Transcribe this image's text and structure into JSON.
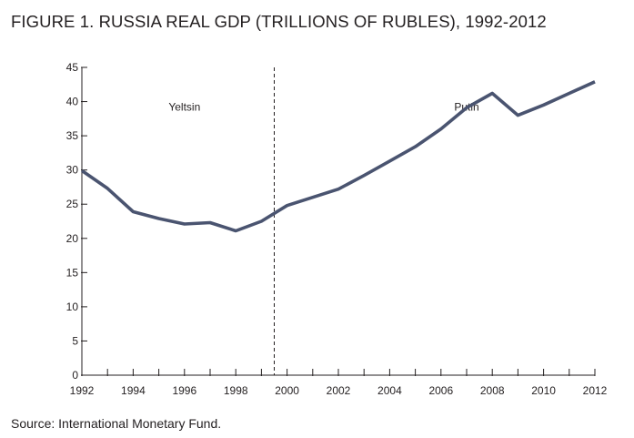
{
  "figure": {
    "title": "FIGURE 1. RUSSIA REAL GDP (TRILLIONS OF RUBLES), 1992-2012",
    "source": "Source: International Monetary Fund."
  },
  "chart_data": {
    "type": "line",
    "title": "FIGURE 1. RUSSIA REAL GDP (TRILLIONS OF RUBLES), 1992-2012",
    "xlabel": "",
    "ylabel": "",
    "x": [
      1992,
      1993,
      1994,
      1995,
      1996,
      1997,
      1998,
      1999,
      2000,
      2001,
      2002,
      2003,
      2004,
      2005,
      2006,
      2007,
      2008,
      2009,
      2010,
      2011,
      2012
    ],
    "series": [
      {
        "values": [
          29.9,
          27.3,
          23.9,
          22.9,
          22.1,
          22.3,
          21.1,
          22.5,
          24.8,
          26.0,
          27.2,
          29.2,
          31.3,
          33.4,
          36.0,
          39.1,
          41.2,
          38.0,
          39.5,
          41.2,
          42.9
        ],
        "color": "#4a5470"
      }
    ],
    "xlim": [
      1992,
      2012
    ],
    "ylim": [
      0,
      45
    ],
    "x_ticks": [
      1992,
      1994,
      1996,
      1998,
      2000,
      2002,
      2004,
      2006,
      2008,
      2010,
      2012
    ],
    "y_ticks": [
      0,
      5,
      10,
      15,
      20,
      25,
      30,
      35,
      40,
      45
    ],
    "grid": false,
    "annotations": [
      {
        "text": "Yeltsin",
        "x": 1996,
        "y": 38.7
      },
      {
        "text": "Putin",
        "x": 2007,
        "y": 38.7
      }
    ],
    "divider_x": 1999.5
  }
}
